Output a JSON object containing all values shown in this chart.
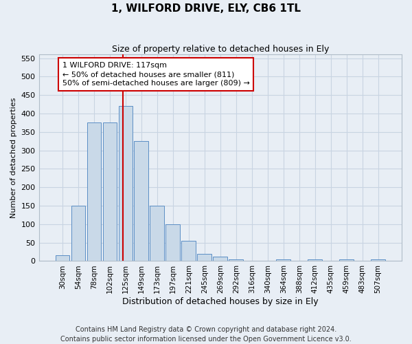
{
  "title": "1, WILFORD DRIVE, ELY, CB6 1TL",
  "subtitle": "Size of property relative to detached houses in Ely",
  "xlabel": "Distribution of detached houses by size in Ely",
  "ylabel": "Number of detached properties",
  "footer": "Contains HM Land Registry data © Crown copyright and database right 2024.\nContains public sector information licensed under the Open Government Licence v3.0.",
  "categories": [
    "30sqm",
    "54sqm",
    "78sqm",
    "102sqm",
    "125sqm",
    "149sqm",
    "173sqm",
    "197sqm",
    "221sqm",
    "245sqm",
    "269sqm",
    "292sqm",
    "316sqm",
    "340sqm",
    "364sqm",
    "388sqm",
    "412sqm",
    "435sqm",
    "459sqm",
    "483sqm",
    "507sqm"
  ],
  "values": [
    15,
    150,
    375,
    375,
    420,
    325,
    150,
    100,
    55,
    20,
    12,
    5,
    0,
    0,
    5,
    0,
    5,
    0,
    5,
    0,
    5
  ],
  "bar_color": "#c9d9e8",
  "bar_edge_color": "#5b8ec5",
  "grid_color": "#c8d4e2",
  "background_color": "#e8eef5",
  "vline_x_index": 3.85,
  "vline_color": "#cc0000",
  "annotation_text": "1 WILFORD DRIVE: 117sqm\n← 50% of detached houses are smaller (811)\n50% of semi-detached houses are larger (809) →",
  "annotation_box_color": "#ffffff",
  "annotation_box_edge_color": "#cc0000",
  "ylim": [
    0,
    560
  ],
  "yticks": [
    0,
    50,
    100,
    150,
    200,
    250,
    300,
    350,
    400,
    450,
    500,
    550
  ],
  "title_fontsize": 11,
  "subtitle_fontsize": 9,
  "ylabel_fontsize": 8,
  "xlabel_fontsize": 9,
  "tick_fontsize": 8,
  "xtick_fontsize": 7.5,
  "footer_fontsize": 7,
  "annotation_fontsize": 8
}
